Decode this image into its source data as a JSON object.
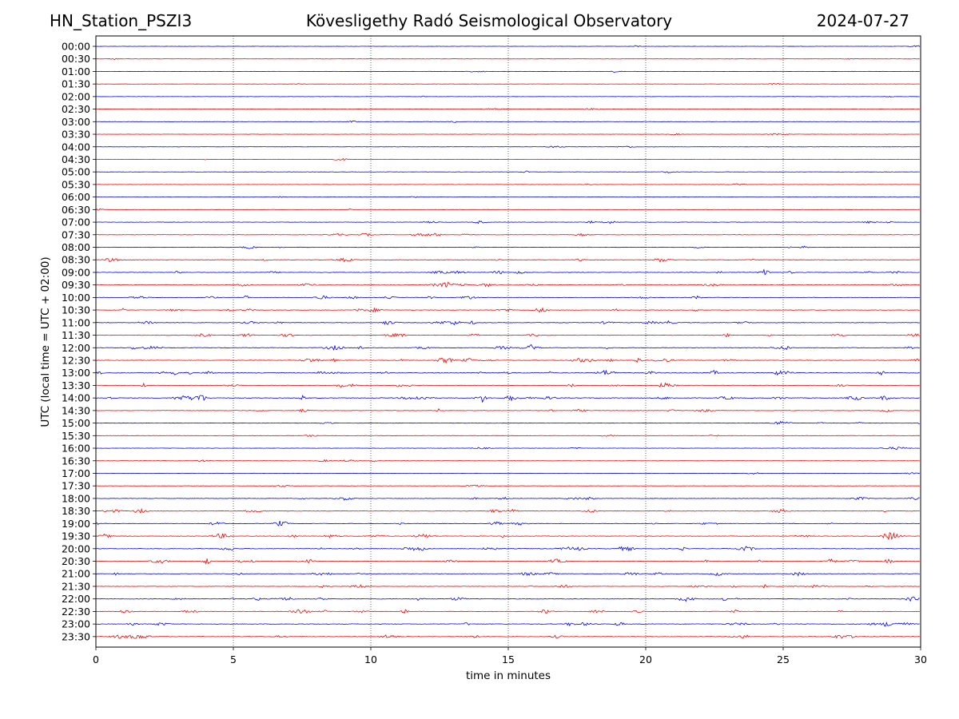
{
  "header": {
    "station": "HN_Station_PSZI3",
    "observatory": "Kövesligethy Radó Seismological Observatory",
    "date": "2024-07-27"
  },
  "chart_data": {
    "type": "line",
    "title": "Kövesligethy Radó Seismological Observatory",
    "xlabel": "time in minutes",
    "ylabel": "UTC (local time = UTC + 02:00)",
    "xlim": [
      0,
      30
    ],
    "x_ticks": [
      0,
      5,
      10,
      15,
      20,
      25,
      30
    ],
    "vertical_grid": "dotted at 5-minute ticks",
    "row_colors": [
      "#0000ff",
      "#ff0000"
    ],
    "rows": [
      {
        "label": "00:00",
        "activity": 0.05
      },
      {
        "label": "00:30",
        "activity": 0.05
      },
      {
        "label": "01:00",
        "activity": 0.05
      },
      {
        "label": "01:30",
        "activity": 0.05
      },
      {
        "label": "02:00",
        "activity": 0.05
      },
      {
        "label": "02:30",
        "activity": 0.05
      },
      {
        "label": "03:00",
        "activity": 0.05
      },
      {
        "label": "03:30",
        "activity": 0.06
      },
      {
        "label": "04:00",
        "activity": 0.05
      },
      {
        "label": "04:30",
        "activity": 0.06
      },
      {
        "label": "05:00",
        "activity": 0.08
      },
      {
        "label": "05:30",
        "activity": 0.06
      },
      {
        "label": "06:00",
        "activity": 0.05
      },
      {
        "label": "06:30",
        "activity": 0.06
      },
      {
        "label": "07:00",
        "activity": 0.2
      },
      {
        "label": "07:30",
        "activity": 0.22
      },
      {
        "label": "08:00",
        "activity": 0.2
      },
      {
        "label": "08:30",
        "activity": 0.3
      },
      {
        "label": "09:00",
        "activity": 0.4
      },
      {
        "label": "09:30",
        "activity": 0.35
      },
      {
        "label": "10:00",
        "activity": 0.35
      },
      {
        "label": "10:30",
        "activity": 0.35
      },
      {
        "label": "11:00",
        "activity": 0.4
      },
      {
        "label": "11:30",
        "activity": 0.35
      },
      {
        "label": "12:00",
        "activity": 0.45
      },
      {
        "label": "12:30",
        "activity": 0.45
      },
      {
        "label": "13:00",
        "activity": 0.55
      },
      {
        "label": "13:30",
        "activity": 0.4
      },
      {
        "label": "14:00",
        "activity": 0.6
      },
      {
        "label": "14:30",
        "activity": 0.3
      },
      {
        "label": "15:00",
        "activity": 0.2
      },
      {
        "label": "15:30",
        "activity": 0.1
      },
      {
        "label": "16:00",
        "activity": 0.12
      },
      {
        "label": "16:30",
        "activity": 0.12
      },
      {
        "label": "17:00",
        "activity": 0.06
      },
      {
        "label": "17:30",
        "activity": 0.06
      },
      {
        "label": "18:00",
        "activity": 0.25
      },
      {
        "label": "18:30",
        "activity": 0.35
      },
      {
        "label": "19:00",
        "activity": 0.35
      },
      {
        "label": "19:30",
        "activity": 0.4
      },
      {
        "label": "20:00",
        "activity": 0.5
      },
      {
        "label": "20:30",
        "activity": 0.45
      },
      {
        "label": "21:00",
        "activity": 0.35
      },
      {
        "label": "21:30",
        "activity": 0.35
      },
      {
        "label": "22:00",
        "activity": 0.45
      },
      {
        "label": "22:30",
        "activity": 0.4
      },
      {
        "label": "23:00",
        "activity": 0.45
      },
      {
        "label": "23:30",
        "activity": 0.4
      }
    ]
  }
}
